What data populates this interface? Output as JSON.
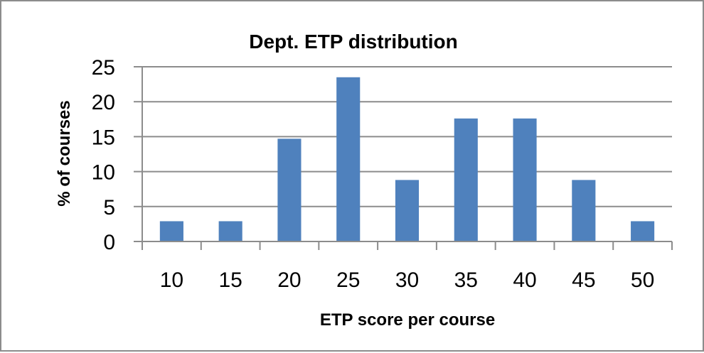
{
  "chart_data": {
    "type": "bar",
    "title": "Dept. ETP distribution",
    "xlabel": "ETP score per course",
    "ylabel": "% of courses",
    "categories": [
      "10",
      "15",
      "20",
      "25",
      "30",
      "35",
      "40",
      "45",
      "50"
    ],
    "series": [
      {
        "values": [
          2.9,
          2.9,
          14.7,
          23.5,
          8.8,
          17.6,
          17.6,
          8.8,
          2.9
        ]
      }
    ],
    "ylim": [
      0,
      25
    ],
    "yticks": [
      "0",
      "5",
      "10",
      "15",
      "20",
      "25"
    ],
    "grid": true,
    "legend": "none",
    "bar_color": "#4f81bd"
  }
}
